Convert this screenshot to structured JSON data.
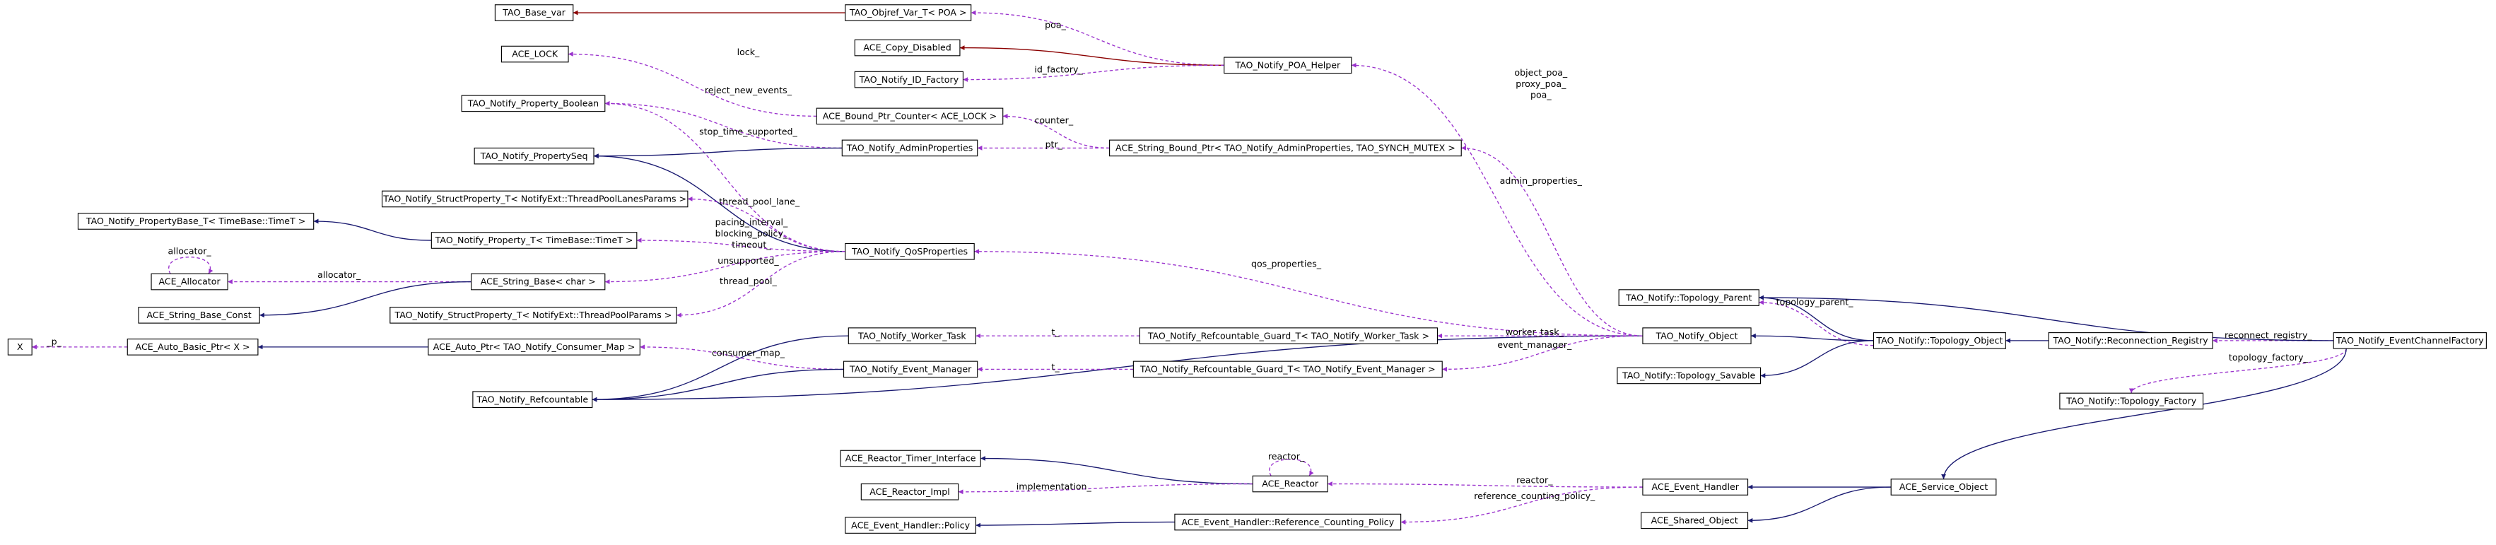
{
  "nodes": [
    "TAO_Base_var",
    "TAO_Objref_Var_T< POA >",
    "ACE_LOCK",
    "ACE_Copy_Disabled",
    "TAO_Notify_ID_Factory",
    "TAO_Notify_POA_Helper",
    "TAO_Notify_Property_Boolean",
    "ACE_Bound_Ptr_Counter< ACE_LOCK >",
    "TAO_Notify_PropertySeq",
    "TAO_Notify_AdminProperties",
    "ACE_String_Bound_Ptr< TAO_Notify_AdminProperties, TAO_SYNCH_MUTEX >",
    "TAO_Notify_StructProperty_T< NotifyExt::ThreadPoolLanesParams >",
    "TAO_Notify_PropertyBase_T< TimeBase::TimeT >",
    "TAO_Notify_Property_T< TimeBase::TimeT >",
    "TAO_Notify_QoSProperties",
    "ACE_Allocator",
    "ACE_String_Base< char >",
    "ACE_String_Base_Const",
    "TAO_Notify_StructProperty_T< NotifyExt::ThreadPoolParams >",
    "X",
    "ACE_Auto_Basic_Ptr< X >",
    "ACE_Auto_Ptr< TAO_Notify_Consumer_Map >",
    "TAO_Notify_Worker_Task",
    "TAO_Notify_Refcountable_Guard_T< TAO_Notify_Worker_Task >",
    "TAO_Notify::Topology_Parent",
    "TAO_Notify_Object",
    "TAO_Notify::Topology_Object",
    "TAO_Notify::Reconnection_Registry",
    "TAO_Notify_EventChannelFactory",
    "TAO_Notify_Event_Manager",
    "TAO_Notify_Refcountable_Guard_T< TAO_Notify_Event_Manager >",
    "TAO_Notify::Topology_Savable",
    "TAO_Notify_Refcountable",
    "TAO_Notify::Topology_Factory",
    "ACE_Reactor_Timer_Interface",
    "ACE_Reactor",
    "ACE_Reactor_Impl",
    "ACE_Event_Handler",
    "ACE_Service_Object",
    "ACE_Event_Handler::Policy",
    "ACE_Event_Handler::Reference_Counting_Policy",
    "ACE_Shared_Object"
  ],
  "edge_labels": [
    "poa_",
    "id_factory_",
    "lock_",
    "reject_new_events_",
    "counter_",
    "stop_time_supported_",
    "ptr_",
    "thread_pool_lane_",
    "pacing_interval_",
    "blocking_policy_",
    "timeout_",
    "allocator_",
    "allocator_",
    "unsupported_",
    "thread_pool_",
    "_p_",
    "consumer_map_",
    "t_",
    "t_",
    "object_poa_",
    "proxy_poa_",
    "poa_",
    "admin_properties_",
    "qos_properties_",
    "worker_task_",
    "event_manager_",
    "topology_parent_",
    "reconnect_registry_",
    "topology_factory_",
    "reactor_",
    "implementation_",
    "reactor_",
    "reference_counting_policy_"
  ]
}
